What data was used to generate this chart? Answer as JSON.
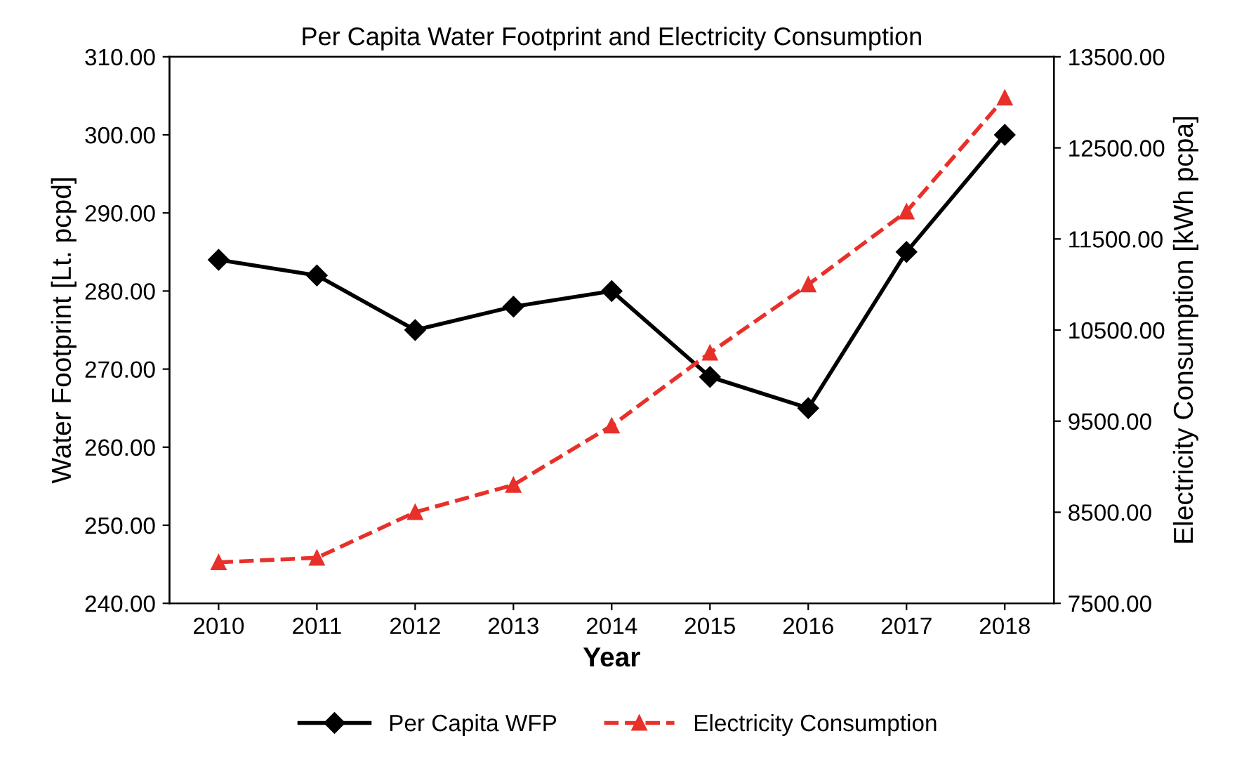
{
  "chart_data": {
    "type": "line",
    "title": "Per Capita Water Footprint and Electricity Consumption",
    "xlabel": "Year",
    "ylabel": "Water Footprint [Lt. pcpd]",
    "y2label": "Electricity Consumption [kWh pcpa]",
    "categories": [
      "2010",
      "2011",
      "2012",
      "2013",
      "2014",
      "2015",
      "2016",
      "2017",
      "2018"
    ],
    "series": [
      {
        "name": "Per Capita WFP",
        "color": "#000000",
        "marker": "diamond",
        "line_style": "solid",
        "values": [
          284,
          282,
          275,
          278,
          280,
          269,
          265,
          285,
          300
        ]
      },
      {
        "name": "Electricity Consumption",
        "color": "#e8302a",
        "marker": "triangle",
        "line_style": "dashed",
        "axis": "y2",
        "values": [
          7950,
          8000,
          8500,
          8800,
          9450,
          10250,
          11000,
          11800,
          13050
        ]
      }
    ],
    "ylim": [
      240,
      310
    ],
    "yticks": [
      {
        "value": 240,
        "label": "240.00"
      },
      {
        "value": 250,
        "label": "250.00"
      },
      {
        "value": 260,
        "label": "260.00"
      },
      {
        "value": 270,
        "label": "270.00"
      },
      {
        "value": 280,
        "label": "280.00"
      },
      {
        "value": 290,
        "label": "290.00"
      },
      {
        "value": 300,
        "label": "300.00"
      },
      {
        "value": 310,
        "label": "310.00"
      }
    ],
    "y2lim": [
      7500,
      13500
    ],
    "y2ticks": [
      {
        "value": 7500,
        "label": "7500.00"
      },
      {
        "value": 8500,
        "label": "8500.00"
      },
      {
        "value": 9500,
        "label": "9500.00"
      },
      {
        "value": 10500,
        "label": "10500.00"
      },
      {
        "value": 11500,
        "label": "11500.00"
      },
      {
        "value": 12500,
        "label": "12500.00"
      },
      {
        "value": 13500,
        "label": "13500.00"
      }
    ],
    "grid": false,
    "legend": "bottom"
  }
}
